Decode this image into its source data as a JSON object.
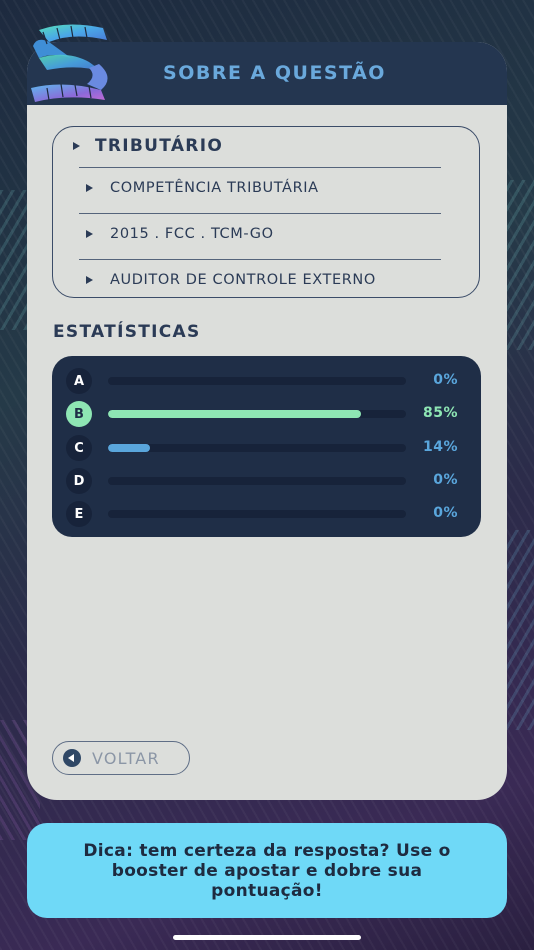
{
  "header": {
    "title": "SOBRE A QUESTÃO"
  },
  "topics": {
    "main": "TRIBUTÁRIO",
    "items": [
      "COMPETÊNCIA TRIBUTÁRIA",
      "2015 . FCC . TCM-GO",
      "AUDITOR DE CONTROLE EXTERNO"
    ]
  },
  "stats": {
    "title": "ESTATÍSTICAS",
    "rows": [
      {
        "letter": "A",
        "value": 0,
        "label": "0%",
        "correct": false
      },
      {
        "letter": "B",
        "value": 85,
        "label": "85%",
        "correct": true
      },
      {
        "letter": "C",
        "value": 14,
        "label": "14%",
        "correct": false
      },
      {
        "letter": "D",
        "value": 0,
        "label": "0%",
        "correct": false
      },
      {
        "letter": "E",
        "value": 0,
        "label": "0%",
        "correct": false
      }
    ],
    "colors": {
      "correct": "#8ee6b4",
      "default": "#5aa6dc"
    }
  },
  "back_button": {
    "label": "VOLTAR"
  },
  "tip": {
    "text": "Dica: tem certeza da resposta? Use o booster de apostar e dobre sua pontuação!"
  }
}
